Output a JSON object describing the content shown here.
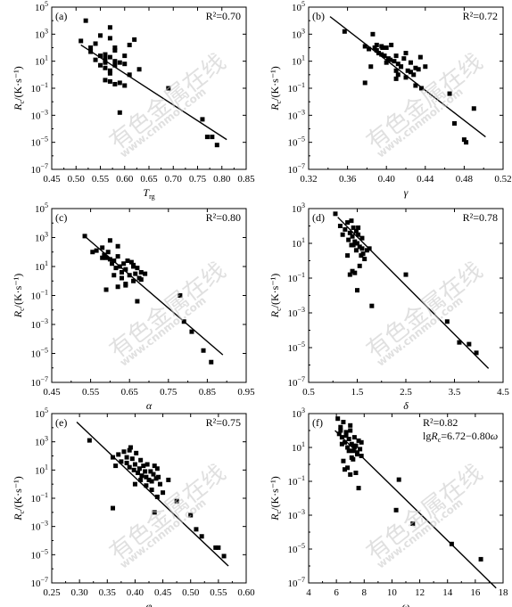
{
  "chart_data": [
    {
      "id": "a",
      "type": "scatter",
      "panel_label": "(a)",
      "title": "",
      "annotation": "R²=0.70",
      "xlabel_main": "T",
      "xlabel_sub": "rg",
      "ylabel": "Rc/(K·s⁻¹)",
      "xlim": [
        0.45,
        0.85
      ],
      "ylog": true,
      "ylim_exp": [
        -7,
        5
      ],
      "xticks": [
        0.45,
        0.5,
        0.55,
        0.6,
        0.65,
        0.7,
        0.75,
        0.8,
        0.85
      ],
      "xtick_labels": [
        "0.45",
        "0.50",
        "0.55",
        "0.60",
        "0.65",
        "0.70",
        "0.75",
        "0.80",
        "0.85"
      ],
      "ytick_exps": [
        -7,
        -5,
        -3,
        -1,
        1,
        3,
        5
      ],
      "fit": {
        "x": [
          0.51,
          0.81
        ],
        "y_exp": [
          2.2,
          -4.8
        ]
      },
      "points": {
        "x": [
          0.52,
          0.51,
          0.53,
          0.54,
          0.53,
          0.55,
          0.56,
          0.57,
          0.57,
          0.58,
          0.58,
          0.59,
          0.6,
          0.6,
          0.61,
          0.62,
          0.54,
          0.55,
          0.56,
          0.56,
          0.57,
          0.58,
          0.59,
          0.6,
          0.56,
          0.57,
          0.58,
          0.61,
          0.63,
          0.59,
          0.57,
          0.55,
          0.69,
          0.76,
          0.77,
          0.78,
          0.79,
          0.58,
          0.56,
          0.57
        ],
        "y_exp": [
          4.0,
          2.5,
          2.0,
          2.3,
          1.7,
          1.4,
          1.5,
          1.3,
          2.7,
          2.0,
          1.0,
          0.9,
          0.8,
          1.4,
          2.2,
          2.6,
          1.1,
          0.7,
          0.9,
          0.5,
          0.3,
          0.7,
          -0.6,
          -0.8,
          -0.4,
          -0.5,
          -0.7,
          0.0,
          0.4,
          -2.8,
          3.5,
          2.9,
          -1.0,
          -3.3,
          -4.6,
          -4.6,
          -5.2,
          1.8,
          1.2,
          0.1
        ]
      }
    },
    {
      "id": "b",
      "type": "scatter",
      "panel_label": "(b)",
      "title": "",
      "annotation": "R²=0.72",
      "xlabel_main": "γ",
      "xlabel_sub": "",
      "ylabel": "Rc/(K·s⁻¹)",
      "xlim": [
        0.32,
        0.52
      ],
      "ylog": true,
      "ylim_exp": [
        -7,
        5
      ],
      "xticks": [
        0.32,
        0.36,
        0.4,
        0.44,
        0.48,
        0.52
      ],
      "xtick_labels": [
        "0.32",
        "0.36",
        "0.40",
        "0.44",
        "0.48",
        "0.52"
      ],
      "ytick_exps": [
        -7,
        -5,
        -3,
        -1,
        1,
        3,
        5
      ],
      "fit": {
        "x": [
          0.342,
          0.502
        ],
        "y_exp": [
          4.3,
          -4.6
        ]
      },
      "points": {
        "x": [
          0.357,
          0.378,
          0.382,
          0.386,
          0.388,
          0.39,
          0.392,
          0.395,
          0.398,
          0.4,
          0.402,
          0.405,
          0.408,
          0.41,
          0.412,
          0.415,
          0.418,
          0.42,
          0.422,
          0.425,
          0.428,
          0.43,
          0.433,
          0.435,
          0.384,
          0.39,
          0.396,
          0.4,
          0.404,
          0.41,
          0.415,
          0.42,
          0.425,
          0.43,
          0.436,
          0.44,
          0.395,
          0.378,
          0.465,
          0.47,
          0.48,
          0.482,
          0.49,
          0.41,
          0.412
        ],
        "y_exp": [
          3.2,
          2.1,
          1.9,
          3.0,
          2.0,
          2.2,
          1.6,
          2.1,
          1.4,
          2.0,
          1.2,
          2.2,
          1.0,
          1.4,
          0.8,
          0.6,
          1.2,
          1.6,
          0.3,
          0.9,
          0.0,
          0.5,
          0.4,
          1.3,
          0.6,
          1.8,
          2.0,
          0.9,
          1.1,
          0.3,
          0.6,
          -0.2,
          0.2,
          -0.8,
          -1.0,
          0.6,
          1.5,
          -0.6,
          -1.4,
          -3.6,
          -4.8,
          -5.0,
          -2.5,
          -0.3,
          0.0
        ]
      }
    },
    {
      "id": "c",
      "type": "scatter",
      "panel_label": "(c)",
      "title": "",
      "annotation": "R²=0.80",
      "xlabel_main": "α",
      "xlabel_sub": "",
      "ylabel": "Rc/(K·s⁻¹)",
      "xlim": [
        0.45,
        0.95
      ],
      "ylog": true,
      "ylim_exp": [
        -7,
        5
      ],
      "xticks": [
        0.45,
        0.55,
        0.65,
        0.75,
        0.85,
        0.95
      ],
      "xtick_labels": [
        "0.45",
        "0.55",
        "0.65",
        "0.75",
        "0.85",
        "0.95"
      ],
      "ytick_exps": [
        -7,
        -5,
        -3,
        -1,
        1,
        3,
        5
      ],
      "fit": {
        "x": [
          0.53,
          0.89
        ],
        "y_exp": [
          3.2,
          -5.1
        ]
      },
      "points": {
        "x": [
          0.535,
          0.555,
          0.565,
          0.58,
          0.585,
          0.59,
          0.595,
          0.6,
          0.605,
          0.61,
          0.615,
          0.62,
          0.625,
          0.63,
          0.635,
          0.64,
          0.645,
          0.65,
          0.655,
          0.66,
          0.665,
          0.67,
          0.675,
          0.68,
          0.69,
          0.59,
          0.6,
          0.62,
          0.63,
          0.64,
          0.66,
          0.67,
          0.68,
          0.58,
          0.61,
          0.66,
          0.78,
          0.79,
          0.81,
          0.84,
          0.86,
          0.64,
          0.62
        ],
        "y_exp": [
          3.1,
          2.0,
          2.1,
          2.3,
          1.8,
          1.6,
          2.0,
          1.5,
          1.2,
          1.4,
          0.9,
          1.7,
          1.0,
          0.6,
          1.2,
          0.8,
          1.4,
          0.4,
          1.3,
          1.0,
          0.5,
          0.9,
          0.2,
          0.1,
          0.5,
          -0.6,
          2.8,
          2.4,
          0.2,
          -0.2,
          0.0,
          -1.4,
          0.6,
          1.6,
          0.4,
          1.1,
          -1.0,
          -2.8,
          -3.5,
          -4.8,
          -5.6,
          -0.3,
          -0.4
        ]
      }
    },
    {
      "id": "d",
      "type": "scatter",
      "panel_label": "(d)",
      "title": "",
      "annotation": "R²=0.78",
      "xlabel_main": "δ",
      "xlabel_sub": "",
      "ylabel": "Rc/(K·s⁻¹)",
      "xlim": [
        0.5,
        4.5
      ],
      "ylog": true,
      "ylim_exp": [
        -7,
        3
      ],
      "xticks": [
        0.5,
        1.5,
        2.5,
        3.5,
        4.5
      ],
      "xtick_labels": [
        "0.5",
        "1.5",
        "2.5",
        "3.5",
        "4.5"
      ],
      "ytick_exps": [
        -7,
        -5,
        -3,
        -1,
        1,
        3
      ],
      "fit": {
        "x": [
          1.1,
          4.2
        ],
        "y_exp": [
          2.5,
          -6.2
        ]
      },
      "points": {
        "x": [
          1.05,
          1.15,
          1.2,
          1.25,
          1.3,
          1.32,
          1.35,
          1.38,
          1.4,
          1.42,
          1.45,
          1.48,
          1.5,
          1.52,
          1.55,
          1.58,
          1.6,
          1.62,
          1.65,
          1.7,
          1.3,
          1.35,
          1.4,
          1.45,
          1.5,
          1.55,
          1.42,
          1.38,
          1.75,
          1.8,
          2.5,
          3.35,
          3.6,
          3.8,
          3.95,
          1.6,
          1.48,
          1.52
        ],
        "y_exp": [
          2.7,
          2.0,
          1.5,
          1.8,
          2.2,
          1.2,
          1.6,
          0.9,
          1.4,
          1.9,
          1.1,
          0.6,
          1.0,
          1.5,
          0.8,
          0.3,
          0.7,
          0.4,
          0.1,
          0.6,
          0.3,
          -0.8,
          -0.6,
          -0.7,
          -1.7,
          -0.3,
          0.9,
          2.3,
          0.7,
          -2.6,
          -0.8,
          -3.5,
          -4.7,
          -4.8,
          -5.3,
          1.3,
          1.7,
          1.9
        ]
      }
    },
    {
      "id": "e",
      "type": "scatter",
      "panel_label": "(e)",
      "title": "",
      "annotation": "R²=0.75",
      "xlabel_main": "φ",
      "xlabel_sub": "",
      "ylabel": "Rc/(K·s⁻¹)",
      "xlim": [
        0.25,
        0.6
      ],
      "ylog": true,
      "ylim_exp": [
        -7,
        5
      ],
      "xticks": [
        0.25,
        0.3,
        0.35,
        0.4,
        0.45,
        0.5,
        0.55,
        0.6
      ],
      "xtick_labels": [
        "0.25",
        "0.30",
        "0.35",
        "0.40",
        "0.45",
        "0.50",
        "0.55",
        "0.60"
      ],
      "ytick_exps": [
        -7,
        -5,
        -3,
        -1,
        1,
        3,
        5
      ],
      "fit": {
        "x": [
          0.295,
          0.568
        ],
        "y_exp": [
          4.4,
          -5.8
        ]
      },
      "points": {
        "x": [
          0.318,
          0.36,
          0.365,
          0.37,
          0.375,
          0.38,
          0.385,
          0.39,
          0.392,
          0.395,
          0.398,
          0.4,
          0.402,
          0.405,
          0.408,
          0.41,
          0.412,
          0.415,
          0.418,
          0.42,
          0.422,
          0.425,
          0.428,
          0.43,
          0.433,
          0.435,
          0.438,
          0.44,
          0.442,
          0.445,
          0.4,
          0.41,
          0.42,
          0.43,
          0.44,
          0.45,
          0.46,
          0.39,
          0.36,
          0.435,
          0.475,
          0.51,
          0.52,
          0.5,
          0.545,
          0.55,
          0.56,
          0.385
        ],
        "y_exp": [
          3.1,
          1.9,
          1.3,
          2.1,
          1.6,
          2.3,
          1.5,
          1.2,
          2.6,
          1.8,
          1.0,
          1.4,
          2.2,
          0.8,
          1.1,
          1.7,
          0.6,
          1.3,
          0.9,
          0.5,
          1.4,
          0.3,
          0.9,
          0.2,
          0.7,
          1.3,
          0.4,
          1.1,
          0.5,
          0.0,
          0.0,
          0.3,
          -0.1,
          -0.4,
          -0.9,
          -0.6,
          0.3,
          2.4,
          -1.7,
          -2.0,
          -1.2,
          -3.2,
          -3.7,
          -2.2,
          -4.5,
          -4.5,
          -5.1,
          1.9
        ]
      }
    },
    {
      "id": "f",
      "type": "scatter",
      "panel_label": "(f)",
      "title": "",
      "annotation": "R²=0.82",
      "annotation2_prefix": "lg",
      "annotation2_var": "R",
      "annotation2_sub": "c",
      "annotation2_rest": "=6.72−0.80",
      "annotation2_sym": "ω",
      "xlabel_main": "ω",
      "xlabel_sub": "",
      "ylabel": "Rc/(K·s⁻¹)",
      "xlim": [
        4,
        18
      ],
      "ylog": true,
      "ylim_exp": [
        -7,
        3
      ],
      "xticks": [
        4,
        6,
        8,
        10,
        12,
        14,
        16,
        18
      ],
      "xtick_labels": [
        "4",
        "6",
        "8",
        "10",
        "12",
        "14",
        "16",
        "18"
      ],
      "ytick_exps": [
        -7,
        -5,
        -3,
        -1,
        1,
        3
      ],
      "fit": {
        "x": [
          5.9,
          17.5
        ],
        "y_exp": [
          2.0,
          -7.3
        ]
      },
      "points": {
        "x": [
          6.1,
          6.2,
          6.3,
          6.4,
          6.5,
          6.6,
          6.7,
          6.8,
          6.9,
          7.0,
          7.1,
          7.2,
          7.3,
          7.4,
          7.5,
          7.6,
          7.7,
          7.8,
          6.5,
          6.6,
          6.8,
          7.0,
          7.2,
          7.4,
          7.6,
          6.7,
          6.9,
          7.1,
          7.3,
          7.5,
          6.4,
          7.8,
          10.5,
          10.3,
          11.5,
          14.3,
          16.4,
          7.0,
          6.3
        ],
        "y_exp": [
          2.7,
          1.8,
          2.2,
          1.6,
          2.5,
          1.3,
          1.9,
          1.0,
          1.5,
          2.0,
          1.2,
          0.8,
          1.6,
          1.1,
          0.6,
          1.4,
          0.9,
          1.3,
          0.2,
          -0.3,
          -0.2,
          -0.6,
          0.3,
          -0.5,
          -1.4,
          1.7,
          0.8,
          0.4,
          1.0,
          0.7,
          1.2,
          0.5,
          -0.9,
          -2.7,
          -3.5,
          -4.7,
          -5.6,
          2.3,
          2.0
        ]
      }
    }
  ],
  "watermark": {
    "text_cn": "有色金属在线",
    "text_url": "www.cnnmol.com"
  }
}
